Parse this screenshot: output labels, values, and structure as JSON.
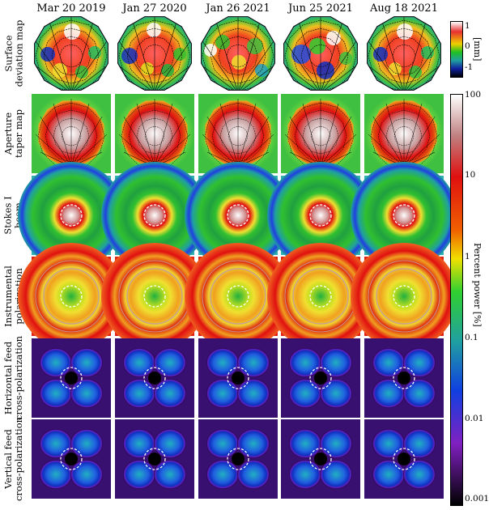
{
  "figure": {
    "columns": [
      "Mar 20 2019",
      "Jan 27 2020",
      "Jan 26 2021",
      "Jun 25 2021",
      "Aug 18 2021"
    ],
    "rows": [
      {
        "id": "surface",
        "label_lines": [
          "Surface",
          "deviation map"
        ]
      },
      {
        "id": "aperture",
        "label_lines": [
          "Aperture",
          "taper map"
        ]
      },
      {
        "id": "stokes",
        "label_lines": [
          "Stokes I",
          "beam"
        ]
      },
      {
        "id": "instpol",
        "label_lines": [
          "Instrumental",
          "polarization"
        ]
      },
      {
        "id": "hfeed",
        "label_lines": [
          "Horizontal feed",
          "cross-polarization"
        ]
      },
      {
        "id": "vfeed",
        "label_lines": [
          "Vertical feed",
          "cross-polarization"
        ]
      }
    ],
    "colorbar_mm": {
      "ticks": [
        "1",
        "0",
        "-1"
      ],
      "label": "[mm]",
      "colors": [
        "#ffffff",
        "#e83030",
        "#f0d000",
        "#20c020",
        "#20a0a0",
        "#1020a0",
        "#000000"
      ]
    },
    "colorbar_power": {
      "ticks": [
        "100",
        "10",
        "1",
        "0.1",
        "0.01",
        "0.001"
      ],
      "label": "Percent power [%]",
      "colors": [
        "#ffffff",
        "#c08080",
        "#e01010",
        "#f0e000",
        "#30d030",
        "#20a0a0",
        "#1040e0",
        "#8020c0",
        "#000000"
      ]
    }
  }
}
